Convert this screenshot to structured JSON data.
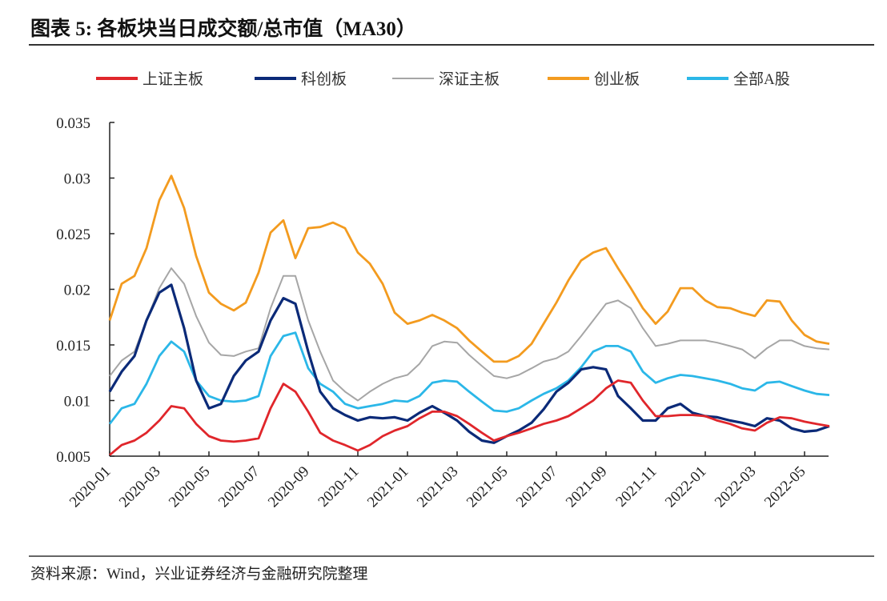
{
  "title": "图表 5: 各板块当日成交额/总市值（MA30）",
  "source": "资料来源：Wind，兴业证券经济与金融研究院整理",
  "chart_data": {
    "type": "line",
    "title": "图表 5: 各板块当日成交额/总市值（MA30）",
    "xlabel": "",
    "ylabel": "",
    "ylim": [
      0.005,
      0.035
    ],
    "yticks": [
      "0.005",
      "0.01",
      "0.015",
      "0.02",
      "0.025",
      "0.03",
      "0.035"
    ],
    "xticks": [
      "2020-01",
      "2020-03",
      "2020-05",
      "2020-07",
      "2020-09",
      "2020-11",
      "2021-01",
      "2021-03",
      "2021-05",
      "2021-07",
      "2021-09",
      "2021-11",
      "2022-01",
      "2022-03",
      "2022-05"
    ],
    "grid": false,
    "legend_position": "top",
    "x": [
      "2020-01-01",
      "2020-01-16",
      "2020-02-01",
      "2020-02-16",
      "2020-03-01",
      "2020-03-16",
      "2020-04-01",
      "2020-04-16",
      "2020-05-01",
      "2020-05-16",
      "2020-06-01",
      "2020-06-16",
      "2020-07-01",
      "2020-07-16",
      "2020-08-01",
      "2020-08-16",
      "2020-09-01",
      "2020-09-16",
      "2020-10-01",
      "2020-10-16",
      "2020-11-01",
      "2020-11-16",
      "2020-12-01",
      "2020-12-16",
      "2021-01-01",
      "2021-01-16",
      "2021-02-01",
      "2021-02-16",
      "2021-03-01",
      "2021-03-16",
      "2021-04-01",
      "2021-04-16",
      "2021-05-01",
      "2021-05-16",
      "2021-06-01",
      "2021-06-16",
      "2021-07-01",
      "2021-07-16",
      "2021-08-01",
      "2021-08-16",
      "2021-09-01",
      "2021-09-16",
      "2021-10-01",
      "2021-10-16",
      "2021-11-01",
      "2021-11-16",
      "2021-12-01",
      "2021-12-16",
      "2022-01-01",
      "2022-01-16",
      "2022-02-01",
      "2022-02-16",
      "2022-03-01",
      "2022-03-16",
      "2022-04-01",
      "2022-04-16",
      "2022-05-01",
      "2022-05-16",
      "2022-06-01"
    ],
    "series": [
      {
        "name": "上证主板",
        "color": "#e0262b",
        "values": [
          0.0051,
          0.006,
          0.0064,
          0.0071,
          0.0082,
          0.0095,
          0.0093,
          0.0079,
          0.0068,
          0.0064,
          0.0063,
          0.0064,
          0.0066,
          0.0093,
          0.0115,
          0.0108,
          0.009,
          0.0071,
          0.0064,
          0.006,
          0.0055,
          0.006,
          0.0068,
          0.0073,
          0.0077,
          0.0084,
          0.009,
          0.009,
          0.0086,
          0.0079,
          0.0071,
          0.0064,
          0.0068,
          0.0071,
          0.0075,
          0.0079,
          0.0082,
          0.0086,
          0.0093,
          0.01,
          0.0111,
          0.0118,
          0.0116,
          0.01,
          0.0086,
          0.0086,
          0.0087,
          0.0087,
          0.0086,
          0.0082,
          0.0079,
          0.0075,
          0.0073,
          0.008,
          0.0085,
          0.0084,
          0.0081,
          0.0079,
          0.0077
        ]
      },
      {
        "name": "科创板",
        "color": "#0b2a78",
        "values": [
          0.0108,
          0.0126,
          0.014,
          0.0172,
          0.0197,
          0.0204,
          0.0165,
          0.0118,
          0.0093,
          0.0097,
          0.0122,
          0.0136,
          0.0144,
          0.0172,
          0.0192,
          0.0187,
          0.0144,
          0.0108,
          0.0093,
          0.0087,
          0.0082,
          0.0085,
          0.0084,
          0.0085,
          0.0082,
          0.0089,
          0.0095,
          0.0089,
          0.0082,
          0.0072,
          0.0064,
          0.0062,
          0.0068,
          0.0073,
          0.008,
          0.0092,
          0.0108,
          0.0116,
          0.0128,
          0.013,
          0.0128,
          0.0104,
          0.0093,
          0.0082,
          0.0082,
          0.0093,
          0.0097,
          0.0089,
          0.0086,
          0.0085,
          0.0082,
          0.008,
          0.0077,
          0.0084,
          0.0082,
          0.0075,
          0.0072,
          0.0073,
          0.0077
        ]
      },
      {
        "name": "深证主板",
        "color": "#a6a6a6",
        "values": [
          0.0122,
          0.0136,
          0.0144,
          0.0172,
          0.0201,
          0.0219,
          0.0205,
          0.0176,
          0.0152,
          0.0141,
          0.014,
          0.0144,
          0.0147,
          0.0183,
          0.0212,
          0.0212,
          0.0172,
          0.0144,
          0.0118,
          0.0108,
          0.01,
          0.0108,
          0.0115,
          0.012,
          0.0123,
          0.0133,
          0.0149,
          0.0153,
          0.0152,
          0.0141,
          0.0131,
          0.0122,
          0.012,
          0.0123,
          0.0129,
          0.0135,
          0.0138,
          0.0144,
          0.0158,
          0.0172,
          0.0187,
          0.019,
          0.0183,
          0.0165,
          0.0149,
          0.0151,
          0.0154,
          0.0154,
          0.0154,
          0.0152,
          0.0149,
          0.0146,
          0.0138,
          0.0147,
          0.0154,
          0.0154,
          0.0149,
          0.0147,
          0.0146
        ]
      },
      {
        "name": "创业板",
        "color": "#f39b1f",
        "values": [
          0.0172,
          0.0205,
          0.0212,
          0.0237,
          0.028,
          0.0302,
          0.0273,
          0.023,
          0.0197,
          0.0187,
          0.0181,
          0.0188,
          0.0215,
          0.0251,
          0.0262,
          0.0228,
          0.0255,
          0.0256,
          0.026,
          0.0255,
          0.0233,
          0.0223,
          0.0205,
          0.0179,
          0.0169,
          0.0172,
          0.0177,
          0.0172,
          0.0165,
          0.0154,
          0.0144,
          0.0135,
          0.0135,
          0.014,
          0.0151,
          0.0169,
          0.0188,
          0.0208,
          0.0226,
          0.0233,
          0.0237,
          0.0219,
          0.0201,
          0.0183,
          0.0169,
          0.018,
          0.0201,
          0.0201,
          0.019,
          0.0184,
          0.0183,
          0.0179,
          0.0176,
          0.019,
          0.0189,
          0.0172,
          0.0159,
          0.0153,
          0.0151
        ]
      },
      {
        "name": "全部A股",
        "color": "#2bb7e8",
        "values": [
          0.0079,
          0.0093,
          0.0097,
          0.0115,
          0.014,
          0.0153,
          0.0144,
          0.0118,
          0.0104,
          0.01,
          0.0099,
          0.01,
          0.0104,
          0.014,
          0.0158,
          0.0161,
          0.0129,
          0.0115,
          0.0108,
          0.0097,
          0.0093,
          0.0095,
          0.0097,
          0.01,
          0.0099,
          0.0104,
          0.0116,
          0.0118,
          0.0117,
          0.0108,
          0.0099,
          0.0091,
          0.009,
          0.0093,
          0.01,
          0.0106,
          0.0111,
          0.0118,
          0.013,
          0.0144,
          0.0149,
          0.0149,
          0.0144,
          0.0126,
          0.0116,
          0.012,
          0.0123,
          0.0122,
          0.012,
          0.0118,
          0.0115,
          0.0111,
          0.0109,
          0.0116,
          0.0117,
          0.0113,
          0.0109,
          0.0106,
          0.0105
        ]
      }
    ]
  }
}
